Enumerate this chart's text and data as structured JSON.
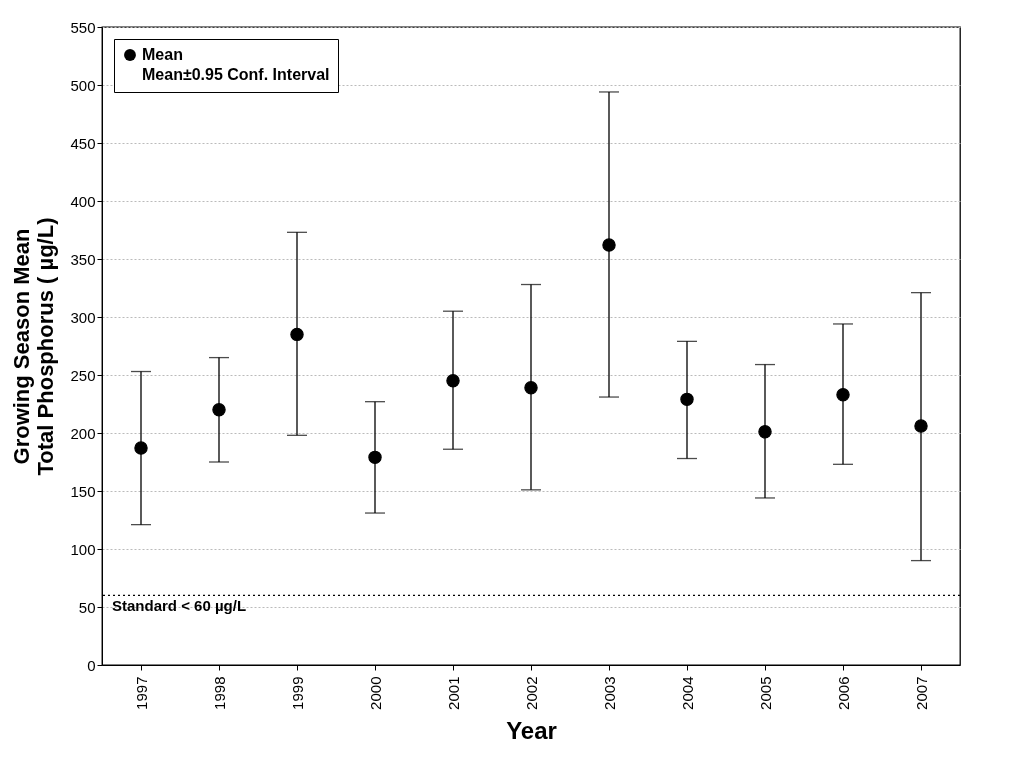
{
  "chart_data": {
    "type": "scatter",
    "xlabel": "Year",
    "ylabel": "Growing Season Mean\nTotal Phosphorus ( µg/L)",
    "categories": [
      "1997",
      "1998",
      "1999",
      "2000",
      "2001",
      "2002",
      "2003",
      "2004",
      "2005",
      "2006",
      "2007"
    ],
    "series": [
      {
        "name": "Mean",
        "color": "#000000",
        "values": [
          187,
          220,
          285,
          179,
          245,
          239,
          362,
          229,
          201,
          233,
          206
        ],
        "errors": [
          [
            121,
            253
          ],
          [
            175,
            265
          ],
          [
            198,
            373
          ],
          [
            131,
            227
          ],
          [
            186,
            305
          ],
          [
            151,
            328
          ],
          [
            231,
            494
          ],
          [
            178,
            279
          ],
          [
            144,
            259
          ],
          [
            173,
            294
          ],
          [
            90,
            321
          ]
        ]
      }
    ],
    "annotations": [
      "Mean±0.95 Conf. Interval"
    ],
    "ref_lines": [
      {
        "axis": "y",
        "value": 60,
        "label": "Standard < 60 µg/L",
        "line_style": "dotted",
        "color": "#000000"
      }
    ],
    "ylim": [
      0,
      550
    ],
    "yticks": [
      0,
      50,
      100,
      150,
      200,
      250,
      300,
      350,
      400,
      450,
      500,
      550
    ],
    "grid": "y",
    "legend": "top left",
    "marker": "circle"
  }
}
